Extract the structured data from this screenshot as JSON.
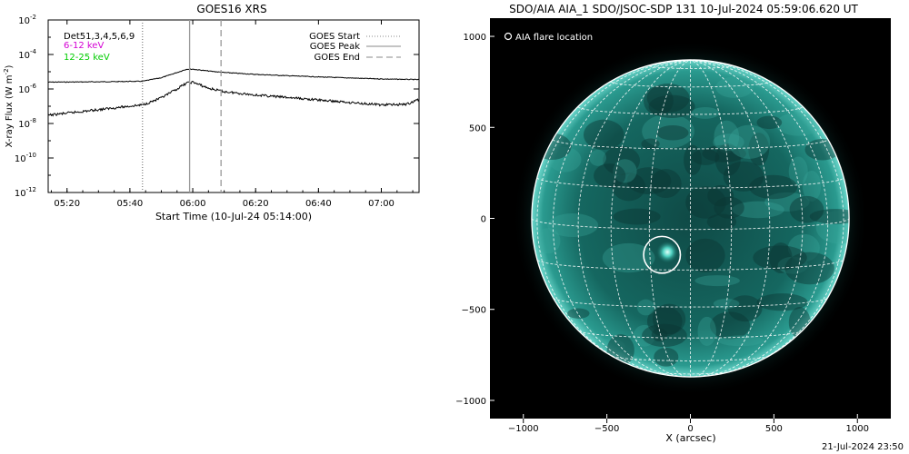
{
  "chart_data": [
    {
      "type": "line",
      "title": "GOES16 XRS",
      "xlabel": "Start Time (10-Jul-24 05:14:00)",
      "ylabel": "X-ray Flux (W m",
      "ylabel_sup": "-2",
      "ylabel_close": ")",
      "y_scale": "log",
      "ylim": [
        1e-12,
        0.01
      ],
      "xlim": [
        "05:14",
        "07:12"
      ],
      "x_ticks": [
        "05:20",
        "05:40",
        "06:00",
        "06:20",
        "06:40",
        "07:00"
      ],
      "y_ticks": [
        {
          "value": 1e-12,
          "base": "10",
          "exp": "-12"
        },
        {
          "value": 1e-10,
          "base": "10",
          "exp": "-10"
        },
        {
          "value": 1e-08,
          "base": "10",
          "exp": "-8"
        },
        {
          "value": 1e-06,
          "base": "10",
          "exp": "-6"
        },
        {
          "value": 0.0001,
          "base": "10",
          "exp": "-4"
        },
        {
          "value": 0.01,
          "base": "10",
          "exp": "-2"
        }
      ],
      "series_labels": [
        {
          "text": "Det51,3,4,5,6,9",
          "color": "#000000"
        },
        {
          "text": "6-12 keV",
          "color": "#d400d4"
        },
        {
          "text": "12-25 keV",
          "color": "#00cc00"
        }
      ],
      "legend": [
        {
          "name": "GOES Start",
          "style": "dotted"
        },
        {
          "name": "GOES Peak",
          "style": "solid"
        },
        {
          "name": "GOES End",
          "style": "dashed"
        }
      ],
      "legend_position": "top-right",
      "markers": {
        "start": "05:44",
        "peak": "05:59",
        "end": "06:09"
      },
      "series": [
        {
          "x": [
            "05:14",
            "05:30",
            "05:44",
            "05:50",
            "05:55",
            "05:58",
            "06:00",
            "06:05",
            "06:10",
            "06:20",
            "06:40",
            "07:00",
            "07:12"
          ],
          "values": [
            2.5e-06,
            2.6e-06,
            2.8e-06,
            4.5e-06,
            9e-06,
            1.4e-05,
            1.4e-05,
            1.1e-05,
            9e-06,
            7e-06,
            5e-06,
            3.8e-06,
            3.5e-06
          ]
        },
        {
          "x": [
            "05:14",
            "05:25",
            "05:35",
            "05:44",
            "05:50",
            "05:55",
            "05:58",
            "06:00",
            "06:05",
            "06:10",
            "06:20",
            "06:40",
            "07:00",
            "07:08",
            "07:12"
          ],
          "values": [
            3e-08,
            5e-08,
            8e-08,
            1.2e-07,
            3e-07,
            1e-06,
            2.2e-06,
            2.5e-06,
            1.1e-06,
            7e-07,
            4.5e-07,
            2.3e-07,
            1.2e-07,
            1.3e-07,
            2.5e-07
          ]
        }
      ]
    },
    {
      "type": "image",
      "title": "SDO/AIA AIA_1 SDO/JSOC-SDP 131 10-Jul-2024 05:59:06.620 UT",
      "xlabel": "X (arcsec)",
      "xlim": [
        -1200,
        1200
      ],
      "ylim": [
        -1100,
        1100
      ],
      "x_ticks": [
        -1000,
        -500,
        0,
        500,
        1000
      ],
      "y_ticks": [
        -1000,
        -500,
        0,
        500,
        1000
      ],
      "x_tick_labels": [
        "−1000",
        "−500",
        "0",
        "500",
        "1000"
      ],
      "y_tick_labels": [
        "−1000",
        "−500",
        "0",
        "500",
        "1000"
      ],
      "legend_label": "AIA flare location",
      "solar_radius": 950,
      "flare_location": [
        -170,
        -200
      ],
      "flare_circle_radius": 110,
      "colors": {
        "disk": "#1a7a73",
        "grid": "#ffffff"
      }
    }
  ],
  "footer": {
    "date": "21-Jul-2024 23:50"
  }
}
